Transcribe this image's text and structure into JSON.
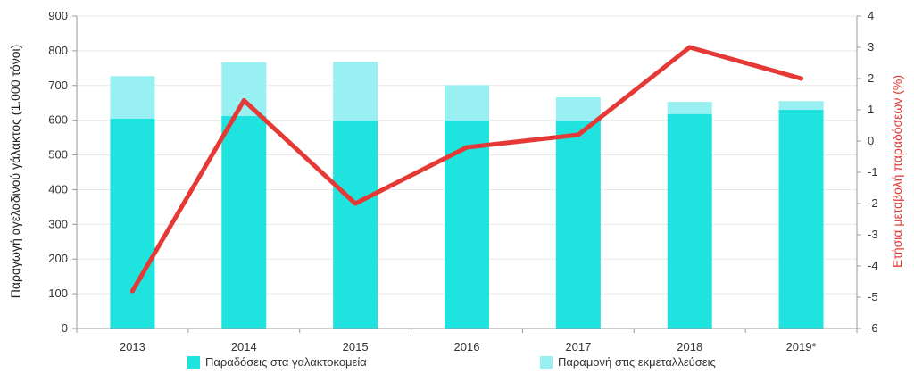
{
  "colors": {
    "deliveries": "#1ee3df",
    "retention": "#98f0f3",
    "line": "#e53935",
    "axis": "#999999",
    "grid": "#e8e8e8"
  },
  "chart_data": {
    "type": "bar+line",
    "categories": [
      "2013",
      "2014",
      "2015",
      "2016",
      "2017",
      "2018",
      "2019*"
    ],
    "series": [
      {
        "name": "Παραδόσεις στα γαλακτοκομεία",
        "kind": "stacked-bar",
        "axis": "left",
        "values": [
          605,
          612,
          598,
          598,
          598,
          618,
          630
        ]
      },
      {
        "name": "Παραμονή στις εκμεταλλεύσεις",
        "kind": "stacked-bar",
        "axis": "left",
        "values": [
          122,
          155,
          170,
          103,
          68,
          35,
          25
        ]
      },
      {
        "name": "Ετήσια μεταβολή παραδόσεων",
        "kind": "line",
        "axis": "right",
        "values": [
          -4.8,
          1.3,
          -2.0,
          -0.2,
          0.2,
          3.0,
          2.0
        ]
      }
    ],
    "ylabel": "Παραγωγή αγελαδινού γάλακτος (1.000 τόνοι)",
    "y2label": "Ετήσια μεταβολή παραδόσεων (%)",
    "ylim": [
      0,
      900
    ],
    "y2lim": [
      -6,
      4
    ],
    "yticks": [
      "0",
      "100",
      "200",
      "300",
      "400",
      "500",
      "600",
      "700",
      "800",
      "900"
    ],
    "y2ticks": [
      "-6",
      "-5",
      "-4",
      "-3",
      "-2",
      "-1",
      "0",
      "1",
      "2",
      "3",
      "4"
    ],
    "grid": true,
    "legend_position": "bottom"
  }
}
